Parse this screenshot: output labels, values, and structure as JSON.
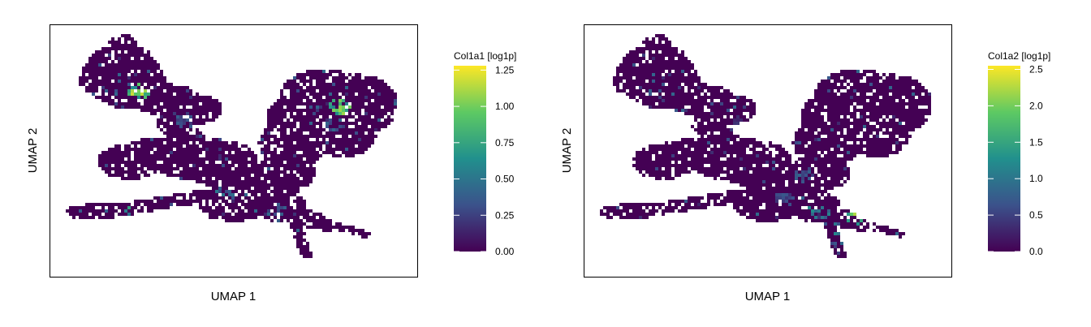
{
  "chart_data": [
    {
      "type": "heatmap",
      "title": "",
      "xlabel": "UMAP 1",
      "ylabel": "UMAP 2",
      "legend": {
        "title": "Col1a1 [log1p]",
        "placement": "right",
        "range": [
          0,
          1.28
        ],
        "ticks": [
          0.0,
          0.25,
          0.5,
          0.75,
          1.0,
          1.25
        ],
        "tick_labels": [
          "0.00",
          "0.25",
          "0.50",
          "0.75",
          "1.00",
          "1.25"
        ]
      },
      "colormap": [
        "#440154",
        "#3b528b",
        "#21908d",
        "#5dc963",
        "#fde725"
      ],
      "background_value": 0.0,
      "hotspots": [
        {
          "x": 0.245,
          "y": 0.73,
          "value": 1.2
        },
        {
          "x": 0.79,
          "y": 0.67,
          "value": 1.1
        },
        {
          "x": 0.23,
          "y": 0.24,
          "value": 0.9
        },
        {
          "x": 0.48,
          "y": 0.32,
          "value": 0.55
        },
        {
          "x": 0.62,
          "y": 0.25,
          "value": 0.45
        },
        {
          "x": 0.36,
          "y": 0.62,
          "value": 0.4
        },
        {
          "x": 0.78,
          "y": 0.6,
          "value": 0.45
        }
      ],
      "grid": false
    },
    {
      "type": "heatmap",
      "title": "",
      "xlabel": "UMAP 1",
      "ylabel": "UMAP 2",
      "legend": {
        "title": "Col1a2 [log1p]",
        "placement": "right",
        "range": [
          0,
          2.55
        ],
        "ticks": [
          0.0,
          0.5,
          1.0,
          1.5,
          2.0,
          2.5
        ],
        "tick_labels": [
          "0.0",
          "0.5",
          "1.0",
          "1.5",
          "2.0",
          "2.5"
        ]
      },
      "colormap": [
        "#440154",
        "#3b528b",
        "#21908d",
        "#5dc963",
        "#fde725"
      ],
      "background_value": 0.0,
      "hotspots": [
        {
          "x": 0.74,
          "y": 0.22,
          "value": 2.5
        },
        {
          "x": 0.64,
          "y": 0.25,
          "value": 1.4
        },
        {
          "x": 0.6,
          "y": 0.4,
          "value": 0.9
        },
        {
          "x": 0.68,
          "y": 0.18,
          "value": 1.2
        },
        {
          "x": 0.55,
          "y": 0.3,
          "value": 0.7
        },
        {
          "x": 0.67,
          "y": 0.1,
          "value": 0.8
        },
        {
          "x": 0.42,
          "y": 0.6,
          "value": 0.5
        }
      ],
      "grid": false
    }
  ]
}
